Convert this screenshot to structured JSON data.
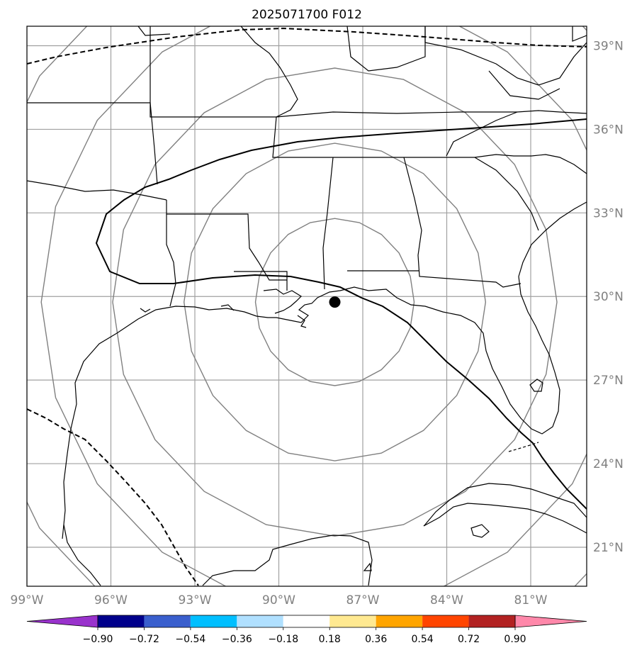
{
  "title": "2025071700 F012",
  "map": {
    "lon_range": [
      -99,
      -79
    ],
    "lat_range": [
      19.6,
      39.7
    ],
    "longitudes": [
      {
        "value": -99,
        "label": "99°W"
      },
      {
        "value": -96,
        "label": "96°W"
      },
      {
        "value": -93,
        "label": "93°W"
      },
      {
        "value": -90,
        "label": "90°W"
      },
      {
        "value": -87,
        "label": "87°W"
      },
      {
        "value": -84,
        "label": "84°W"
      },
      {
        "value": -81,
        "label": "81°W"
      }
    ],
    "latitudes": [
      {
        "value": 21,
        "label": "21°N"
      },
      {
        "value": 24,
        "label": "24°N"
      },
      {
        "value": 27,
        "label": "27°N"
      },
      {
        "value": 30,
        "label": "30°N"
      },
      {
        "value": 33,
        "label": "33°N"
      },
      {
        "value": 36,
        "label": "36°N"
      },
      {
        "value": 39,
        "label": "39°N"
      }
    ],
    "storm_center": {
      "lon": -88.0,
      "lat": 29.8
    },
    "range_rings_deg": [
      3,
      5.7,
      8.4,
      11.1,
      13.8
    ],
    "grid_color": "#a0a0a0",
    "ring_color": "#808080"
  },
  "colorbar": {
    "ticks": [
      "−0.90",
      "−0.72",
      "−0.54",
      "−0.36",
      "−0.18",
      "0.18",
      "0.36",
      "0.54",
      "0.72",
      "0.90"
    ],
    "under_color": "#9932cc",
    "over_color": "#ff88aa",
    "colors": [
      "#9932cc",
      "#00008b",
      "#3a5fcd",
      "#00bfff",
      "#b0e0ff",
      "#ffffff",
      "#ffe991",
      "#ffa500",
      "#ff4500",
      "#b22222",
      "#ff88aa"
    ]
  }
}
